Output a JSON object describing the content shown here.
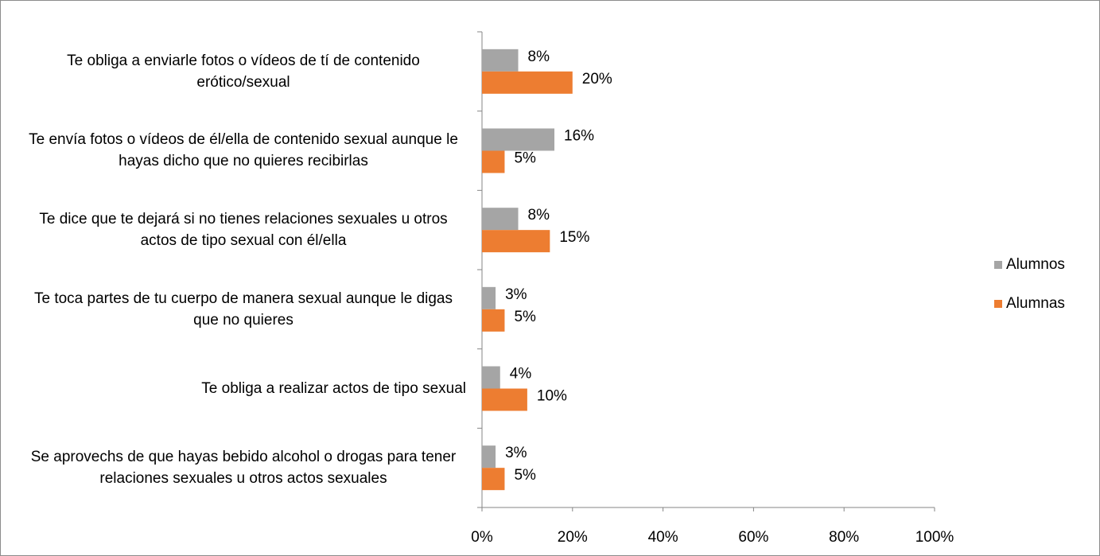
{
  "chart_data": {
    "type": "bar",
    "orientation": "horizontal",
    "categories": [
      "Te obliga a enviarle fotos o vídeos de tí de contenido erótico/sexual",
      "Te envía fotos o vídeos de él/ella de contenido sexual aunque le hayas dicho que no quieres recibirlas",
      "Te dice que te dejará si no tienes relaciones sexuales u otros actos de tipo sexual con él/ella",
      "Te toca partes de tu cuerpo de manera sexual aunque le digas que no quieres",
      "Te obliga a realizar actos de tipo sexual",
      "Se aprovechs de que hayas bebido alcohol o drogas para tener relaciones sexuales u otros actos sexuales"
    ],
    "series": [
      {
        "name": "Alumnos",
        "color": "#a5a5a5",
        "values": [
          8,
          16,
          8,
          3,
          4,
          3
        ],
        "value_labels": [
          "8%",
          "16%",
          "8%",
          "3%",
          "4%",
          "3%"
        ]
      },
      {
        "name": "Alumnas",
        "color": "#ed7d31",
        "values": [
          20,
          5,
          15,
          5,
          10,
          5
        ],
        "value_labels": [
          "20%",
          "5%",
          "15%",
          "5%",
          "10%",
          "5%"
        ]
      }
    ],
    "xlim": [
      0,
      100
    ],
    "xticks": [
      {
        "value": 0,
        "label": "0%"
      },
      {
        "value": 20,
        "label": "20%"
      },
      {
        "value": 40,
        "label": "40%"
      },
      {
        "value": 60,
        "label": "60%"
      },
      {
        "value": 80,
        "label": "80%"
      },
      {
        "value": 100,
        "label": "100%"
      }
    ],
    "grid": false,
    "legend": "right"
  }
}
